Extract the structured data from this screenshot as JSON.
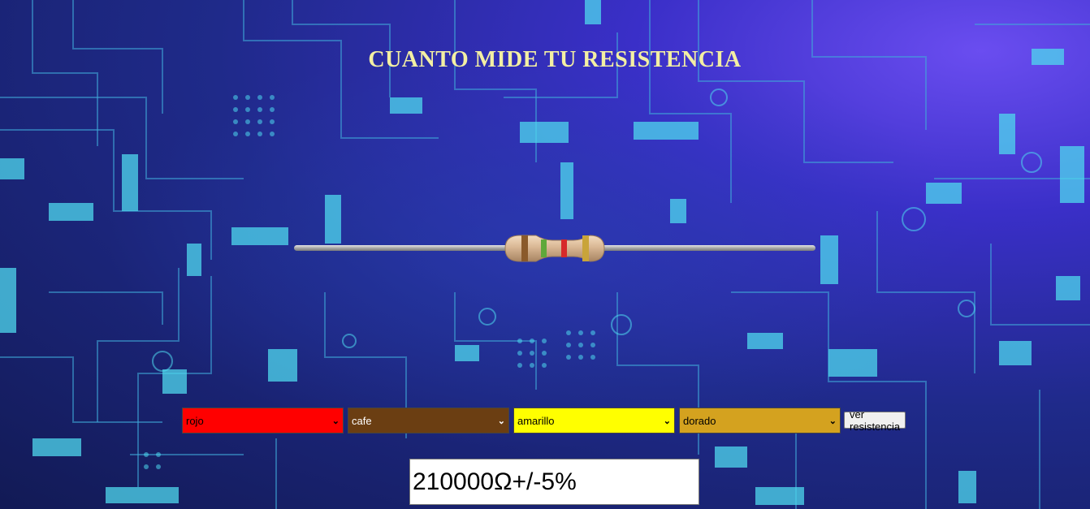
{
  "page": {
    "title": "CUANTO MIDE TU RESISTENCIA"
  },
  "bands": [
    {
      "id": "band1",
      "value": "rojo",
      "color": "#ff0000",
      "text_color": "#000000"
    },
    {
      "id": "band2",
      "value": "cafe",
      "color": "#6b3e12",
      "text_color": "#ffffff"
    },
    {
      "id": "band3",
      "value": "amarillo",
      "color": "#ffff00",
      "text_color": "#000000"
    },
    {
      "id": "tolerance",
      "value": "dorado",
      "color": "#d4a21f",
      "text_color": "#000000"
    }
  ],
  "resistor_band_colors": [
    "#8a5a2b",
    "#5fa83a",
    "#d62a2a",
    "#c9a43a"
  ],
  "actions": {
    "calculate_label": "ver resistencia"
  },
  "result": {
    "value": "210000Ω+/-5%"
  },
  "theme": {
    "title_color": "#f3efa3",
    "circuit_color": "#4fd8ee"
  }
}
